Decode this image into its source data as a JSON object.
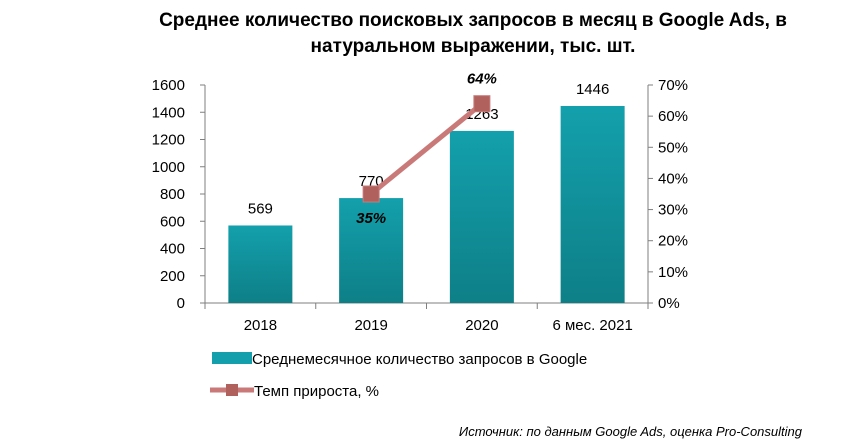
{
  "chart_data": {
    "type": "bar",
    "title_line1": "Среднее количество поисковых запросов в месяц в Google Ads, в",
    "title_line2": "натуральном выражении, тыс. шт.",
    "categories": [
      "2018",
      "2019",
      "2020",
      "6 мес. 2021"
    ],
    "series": [
      {
        "name": "Среднемесячное  количество  запросов в Google",
        "type": "bar",
        "axis": "left",
        "values": [
          569,
          770,
          1263,
          1446
        ],
        "labels": [
          "569",
          "770",
          "1263",
          "1446"
        ],
        "color": "#13A0AC"
      },
      {
        "name": "Темп прироста,  %",
        "type": "line",
        "axis": "right",
        "values": [
          null,
          35,
          64,
          null
        ],
        "labels": [
          null,
          "35%",
          "64%",
          null
        ],
        "color": "#C97A78"
      }
    ],
    "y_left": {
      "min": 0,
      "max": 1600,
      "ticks": [
        "0",
        "200",
        "400",
        "600",
        "800",
        "1000",
        "1200",
        "1400",
        "1600"
      ]
    },
    "y_right": {
      "min": 0,
      "max": 70,
      "ticks": [
        "0%",
        "10%",
        "20%",
        "30%",
        "40%",
        "50%",
        "60%",
        "70%"
      ]
    },
    "grid": false,
    "legend_position": "bottom"
  },
  "source": "Источник: по данным Google Ads, оценка Pro-Consulting"
}
